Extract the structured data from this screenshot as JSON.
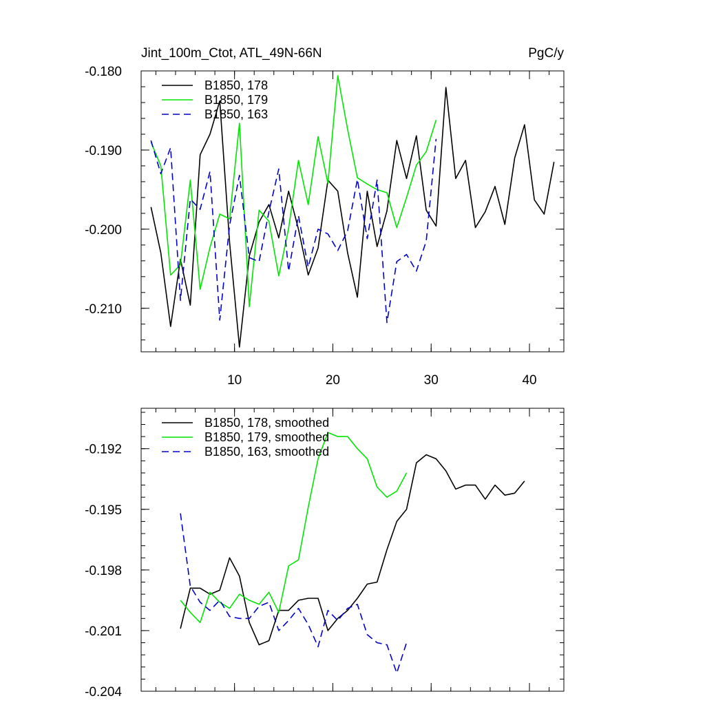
{
  "chart_data": [
    {
      "type": "line",
      "title": "Jint_100m_Ctot, ATL_49N-66N",
      "units": "PgC/y",
      "xlim": [
        0.5,
        43.5
      ],
      "ylim": [
        -0.2155,
        -0.18
      ],
      "xticks": [
        10,
        20,
        30,
        40
      ],
      "xtick_labels": [
        "10",
        "20",
        "30",
        "40"
      ],
      "yticks": [
        -0.21,
        -0.2,
        -0.19,
        -0.18
      ],
      "ytick_labels": [
        "-0.210",
        "-0.200",
        "-0.190",
        "-0.180"
      ],
      "legend_position": "top-left",
      "series": [
        {
          "name": "B1850, 178",
          "color": "#000000",
          "dash": "solid",
          "x": [
            1.5,
            2.5,
            3.5,
            4.5,
            5.5,
            6.5,
            7.5,
            8.5,
            9.5,
            10.5,
            11.5,
            12.5,
            13.5,
            14.5,
            15.5,
            16.5,
            17.5,
            18.5,
            19.5,
            20.5,
            21.5,
            22.5,
            23.5,
            24.5,
            25.5,
            26.5,
            27.5,
            28.5,
            29.5,
            30.5,
            31.5,
            32.5,
            33.5,
            34.5,
            35.5,
            36.5,
            37.5,
            38.5,
            39.5,
            40.5,
            41.5,
            42.5
          ],
          "y": [
            -0.1972,
            -0.203,
            -0.2123,
            -0.2038,
            -0.2096,
            -0.1906,
            -0.188,
            -0.1838,
            -0.2017,
            -0.2149,
            -0.2034,
            -0.1991,
            -0.1969,
            -0.2011,
            -0.1952,
            -0.2,
            -0.2058,
            -0.2024,
            -0.1938,
            -0.1952,
            -0.203,
            -0.2086,
            -0.1952,
            -0.2022,
            -0.1977,
            -0.1888,
            -0.1936,
            -0.1882,
            -0.1976,
            -0.1996,
            -0.1821,
            -0.1936,
            -0.1913,
            -0.1998,
            -0.1978,
            -0.1946,
            -0.1994,
            -0.191,
            -0.1868,
            -0.1963,
            -0.1981,
            -0.1915
          ]
        },
        {
          "name": "B1850, 179",
          "color": "#00e600",
          "dash": "solid",
          "x": [
            1.5,
            2.5,
            3.5,
            4.5,
            5.5,
            6.5,
            7.5,
            8.5,
            9.5,
            10.5,
            11.5,
            12.5,
            13.5,
            14.5,
            15.5,
            16.5,
            17.5,
            18.5,
            19.5,
            20.5,
            21.5,
            22.5,
            23.5,
            24.5,
            25.5,
            26.5,
            27.5,
            28.5,
            29.5,
            30.5
          ],
          "y": [
            -0.189,
            -0.192,
            -0.2058,
            -0.2045,
            -0.1938,
            -0.2076,
            -0.2023,
            -0.1981,
            -0.1987,
            -0.1866,
            -0.2098,
            -0.1976,
            -0.199,
            -0.2059,
            -0.1999,
            -0.1913,
            -0.1969,
            -0.1883,
            -0.1942,
            -0.1806,
            -0.1874,
            -0.1935,
            -0.1943,
            -0.195,
            -0.1954,
            -0.1998,
            -0.196,
            -0.1919,
            -0.1902,
            -0.1862
          ]
        },
        {
          "name": "B1850, 163",
          "color": "#0000cc",
          "dash": "dashed",
          "x": [
            1.5,
            2.5,
            3.5,
            4.5,
            5.5,
            6.5,
            7.5,
            8.5,
            9.5,
            10.5,
            11.5,
            12.5,
            13.5,
            14.5,
            15.5,
            16.5,
            17.5,
            18.5,
            19.5,
            20.5,
            21.5,
            22.5,
            23.5,
            24.5,
            25.5,
            26.5,
            27.5,
            28.5,
            29.5,
            30.5
          ],
          "y": [
            -0.1888,
            -0.193,
            -0.1897,
            -0.209,
            -0.1962,
            -0.1975,
            -0.1927,
            -0.2115,
            -0.1995,
            -0.1932,
            -0.2036,
            -0.2041,
            -0.1978,
            -0.1924,
            -0.2053,
            -0.1983,
            -0.2048,
            -0.2,
            -0.2006,
            -0.2027,
            -0.2002,
            -0.1937,
            -0.2012,
            -0.1938,
            -0.2118,
            -0.2041,
            -0.2032,
            -0.2053,
            -0.2015,
            -0.1886
          ]
        }
      ]
    },
    {
      "type": "line",
      "title": "",
      "xlim": [
        0.5,
        43.5
      ],
      "ylim": [
        -0.204,
        -0.19
      ],
      "xticks": [
        10,
        20,
        30,
        40
      ],
      "xtick_labels": [],
      "yticks": [
        -0.204,
        -0.201,
        -0.198,
        -0.195,
        -0.192
      ],
      "ytick_labels": [
        "-0.204",
        "-0.201",
        "-0.198",
        "-0.195",
        "-0.192"
      ],
      "legend_position": "top-left",
      "series": [
        {
          "name": "B1850, 178, smoothed",
          "color": "#000000",
          "dash": "solid",
          "x": [
            4.5,
            5.5,
            6.5,
            7.5,
            8.5,
            9.5,
            10.5,
            11.5,
            12.5,
            13.5,
            14.5,
            15.5,
            16.5,
            17.5,
            18.5,
            19.5,
            20.5,
            21.5,
            22.5,
            23.5,
            24.5,
            25.5,
            26.5,
            27.5,
            28.5,
            29.5,
            30.5,
            31.5,
            32.5,
            33.5,
            34.5,
            35.5,
            36.5,
            37.5,
            38.5,
            39.5
          ],
          "y": [
            -0.2009,
            -0.1989,
            -0.1989,
            -0.1992,
            -0.199,
            -0.1974,
            -0.1983,
            -0.2006,
            -0.2017,
            -0.2015,
            -0.2,
            -0.2,
            -0.1995,
            -0.1994,
            -0.1994,
            -0.201,
            -0.2004,
            -0.2,
            -0.1994,
            -0.1987,
            -0.1986,
            -0.197,
            -0.1956,
            -0.195,
            -0.1927,
            -0.1923,
            -0.1925,
            -0.1931,
            -0.194,
            -0.1938,
            -0.1938,
            -0.1945,
            -0.1938,
            -0.1943,
            -0.1942,
            -0.1936
          ]
        },
        {
          "name": "B1850, 179, smoothed",
          "color": "#00e600",
          "dash": "solid",
          "x": [
            4.5,
            5.5,
            6.5,
            7.5,
            8.5,
            9.5,
            10.5,
            11.5,
            12.5,
            13.5,
            14.5,
            15.5,
            16.5,
            17.5,
            18.5,
            19.5,
            20.5,
            21.5,
            22.5,
            23.5,
            24.5,
            25.5,
            26.5,
            27.5
          ],
          "y": [
            -0.1995,
            -0.2001,
            -0.2006,
            -0.1991,
            -0.1996,
            -0.1999,
            -0.1992,
            -0.1995,
            -0.1997,
            -0.1991,
            -0.2001,
            -0.1978,
            -0.1975,
            -0.1949,
            -0.1925,
            -0.1912,
            -0.1914,
            -0.1914,
            -0.192,
            -0.1925,
            -0.1939,
            -0.1944,
            -0.1941,
            -0.1932
          ]
        },
        {
          "name": "B1850, 163, smoothed",
          "color": "#0000cc",
          "dash": "dashed",
          "x": [
            4.5,
            5.5,
            6.5,
            7.5,
            8.5,
            9.5,
            10.5,
            11.5,
            12.5,
            13.5,
            14.5,
            15.5,
            16.5,
            17.5,
            18.5,
            19.5,
            20.5,
            21.5,
            22.5,
            23.5,
            24.5,
            25.5,
            26.5,
            27.5
          ],
          "y": [
            -0.1952,
            -0.1988,
            -0.1996,
            -0.2,
            -0.1995,
            -0.2003,
            -0.2004,
            -0.2004,
            -0.1998,
            -0.1996,
            -0.201,
            -0.2005,
            -0.1999,
            -0.2007,
            -0.2018,
            -0.2,
            -0.2005,
            -0.1999,
            -0.1997,
            -0.2012,
            -0.2016,
            -0.2017,
            -0.2031,
            -0.2016
          ]
        }
      ]
    }
  ]
}
